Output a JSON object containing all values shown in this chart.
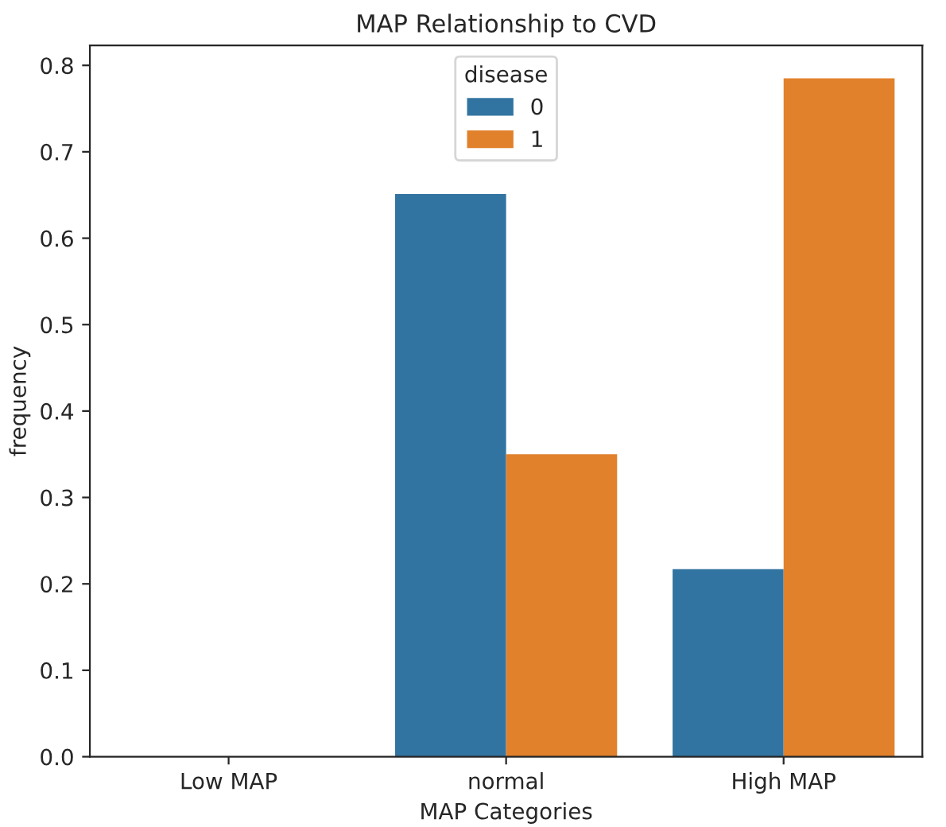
{
  "chart_data": {
    "type": "bar",
    "title": "MAP Relationship to CVD",
    "xlabel": "MAP Categories",
    "ylabel": "frequency",
    "legend_title": "disease",
    "categories": [
      "Low MAP",
      "normal",
      "High MAP"
    ],
    "series": [
      {
        "name": "0",
        "color": "#3274a1",
        "values": [
          0,
          0.651,
          0.217
        ]
      },
      {
        "name": "1",
        "color": "#e1812c",
        "values": [
          0,
          0.35,
          0.785
        ]
      }
    ],
    "ylim": [
      0,
      0.823
    ],
    "yticks": [
      {
        "value": 0,
        "label": "0.0"
      },
      0.1,
      0.2,
      0.3,
      0.4,
      0.5,
      0.6,
      0.7,
      0.8
    ],
    "grid": false,
    "legend": "top"
  }
}
